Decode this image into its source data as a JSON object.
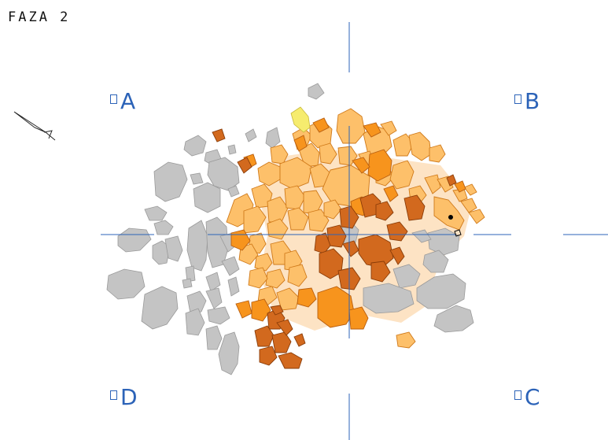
{
  "title": "FAZA 2",
  "corners": {
    "a": "A",
    "b": "B",
    "c": "C",
    "d": "D"
  },
  "colors": {
    "grid": "#2c63b8",
    "stone": "#c4c4c4",
    "light_orange": "#fdc06a",
    "orange": "#f7941d",
    "dark_orange": "#d2691e",
    "pale": "#fde3c4",
    "yellow": "#f6ec6e"
  },
  "icons": [
    "north-arrow-icon"
  ]
}
